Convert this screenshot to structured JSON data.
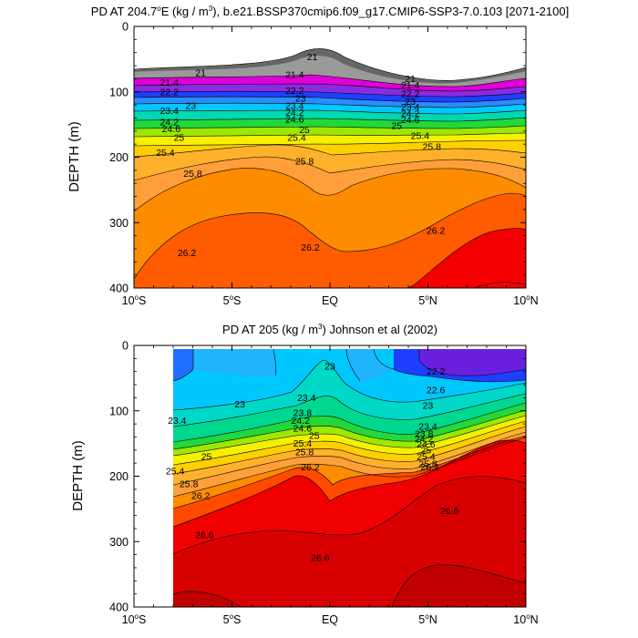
{
  "chart_data": [
    {
      "type": "contour",
      "panel": "top",
      "title": "PD AT 204.7°E (kg / m³), b.e21.BSSP370cmip6.f09_g17.CMIP6-SSP3-7.0.103 [2071-2100]",
      "title_parts": {
        "a": "PD AT 204.7",
        "deg": "o",
        "b": "E (kg / m",
        "sup": "3",
        "c": "), b.e21.BSSP370cmip6.f09_g17.CMIP6-SSP3-7.0.103 [2071-2100]"
      },
      "xlabel": "",
      "ylabel": "DEPTH (m)",
      "xlim": [
        -10,
        10
      ],
      "ylim": [
        400,
        0
      ],
      "x_ticks": [
        -10,
        -5,
        0,
        5,
        10
      ],
      "x_tick_labels": [
        {
          "deg": "10",
          "hem": "S"
        },
        {
          "deg": "5",
          "hem": "S"
        },
        {
          "deg": "EQ",
          "hem": ""
        },
        {
          "deg": "5",
          "hem": "N"
        },
        {
          "deg": "10",
          "hem": "N"
        }
      ],
      "y_ticks": [
        0,
        100,
        200,
        300,
        400
      ],
      "y_tick_labels": [
        "0",
        "100",
        "200",
        "300",
        "400"
      ],
      "contour_labels": [
        {
          "text": "21",
          "x": -6.6,
          "y": 71
        },
        {
          "text": "21",
          "x": -0.9,
          "y": 47
        },
        {
          "text": "21",
          "x": 4.1,
          "y": 80
        },
        {
          "text": "21.4",
          "x": -8.2,
          "y": 86
        },
        {
          "text": "21.4",
          "x": -1.8,
          "y": 74
        },
        {
          "text": "21.4",
          "x": 4.1,
          "y": 90
        },
        {
          "text": "22.2",
          "x": -8.2,
          "y": 100
        },
        {
          "text": "22.2",
          "x": -1.8,
          "y": 98
        },
        {
          "text": "22.2",
          "x": 4.1,
          "y": 103
        },
        {
          "text": "23",
          "x": -7.1,
          "y": 121
        },
        {
          "text": "23",
          "x": -1.5,
          "y": 110
        },
        {
          "text": "23",
          "x": 4.1,
          "y": 115
        },
        {
          "text": "23.4",
          "x": -8.2,
          "y": 129
        },
        {
          "text": "23.4",
          "x": -1.8,
          "y": 121
        },
        {
          "text": "23.4",
          "x": 4.1,
          "y": 123
        },
        {
          "text": "24.2",
          "x": -8.2,
          "y": 146
        },
        {
          "text": "24.2",
          "x": -1.8,
          "y": 132
        },
        {
          "text": "24.2",
          "x": 4.1,
          "y": 133
        },
        {
          "text": "24.6",
          "x": -8.1,
          "y": 157
        },
        {
          "text": "24.6",
          "x": -1.8,
          "y": 142
        },
        {
          "text": "24.6",
          "x": 4.1,
          "y": 143
        },
        {
          "text": "25",
          "x": -7.7,
          "y": 170
        },
        {
          "text": "25",
          "x": -1.3,
          "y": 158
        },
        {
          "text": "25",
          "x": 3.4,
          "y": 152
        },
        {
          "text": "25.4",
          "x": -8.4,
          "y": 193
        },
        {
          "text": "25.4",
          "x": -1.7,
          "y": 170
        },
        {
          "text": "25.4",
          "x": 4.6,
          "y": 167
        },
        {
          "text": "25.8",
          "x": -7.0,
          "y": 225
        },
        {
          "text": "25.8",
          "x": -1.3,
          "y": 206
        },
        {
          "text": "25.8",
          "x": 5.2,
          "y": 184
        },
        {
          "text": "26.2",
          "x": -7.3,
          "y": 346
        },
        {
          "text": "26.2",
          "x": -1.0,
          "y": 338
        },
        {
          "text": "26.2",
          "x": 5.4,
          "y": 312
        }
      ]
    },
    {
      "type": "contour",
      "panel": "bottom",
      "title": "PD AT 205 (kg / m³) Johnson et al (2002)",
      "title_parts": {
        "a": "PD AT 205 (kg / m",
        "sup": "3",
        "c": ") Johnson et al (2002)"
      },
      "xlabel": "",
      "ylabel": "DEPTH (m)",
      "xlim": [
        -10,
        10
      ],
      "ylim": [
        400,
        0
      ],
      "data_x_range": [
        -8,
        10
      ],
      "x_ticks": [
        -10,
        -5,
        0,
        5,
        10
      ],
      "x_tick_labels": [
        {
          "deg": "10",
          "hem": "S"
        },
        {
          "deg": "5",
          "hem": "S"
        },
        {
          "deg": "EQ",
          "hem": ""
        },
        {
          "deg": "5",
          "hem": "N"
        },
        {
          "deg": "10",
          "hem": "N"
        }
      ],
      "y_ticks": [
        0,
        100,
        200,
        300,
        400
      ],
      "y_tick_labels": [
        "0",
        "100",
        "200",
        "300",
        "400"
      ],
      "contour_labels": [
        {
          "text": "23",
          "x": 0.0,
          "y": 32
        },
        {
          "text": "22.2",
          "x": 5.4,
          "y": 40
        },
        {
          "text": "22.6",
          "x": 5.4,
          "y": 68
        },
        {
          "text": "23",
          "x": -4.6,
          "y": 90
        },
        {
          "text": "23",
          "x": 5.0,
          "y": 92
        },
        {
          "text": "23.4",
          "x": -7.8,
          "y": 115
        },
        {
          "text": "23.4",
          "x": -1.2,
          "y": 80
        },
        {
          "text": "23.4",
          "x": 5.0,
          "y": 124
        },
        {
          "text": "23.8",
          "x": -1.4,
          "y": 103
        },
        {
          "text": "23.8",
          "x": 4.8,
          "y": 135
        },
        {
          "text": "24.2",
          "x": -1.5,
          "y": 115
        },
        {
          "text": "24.2",
          "x": 4.8,
          "y": 143
        },
        {
          "text": "24.6",
          "x": -1.4,
          "y": 127
        },
        {
          "text": "24.6",
          "x": 4.9,
          "y": 151
        },
        {
          "text": "25",
          "x": -0.8,
          "y": 138
        },
        {
          "text": "25",
          "x": -6.3,
          "y": 170
        },
        {
          "text": "25",
          "x": 4.9,
          "y": 160
        },
        {
          "text": "25.4",
          "x": -1.4,
          "y": 150
        },
        {
          "text": "25.4",
          "x": -7.9,
          "y": 192
        },
        {
          "text": "25.4",
          "x": 4.9,
          "y": 170
        },
        {
          "text": "25.8",
          "x": -1.3,
          "y": 163
        },
        {
          "text": "25.8",
          "x": -7.2,
          "y": 212
        },
        {
          "text": "25.8",
          "x": 5.0,
          "y": 181
        },
        {
          "text": "26.2",
          "x": -1.0,
          "y": 186
        },
        {
          "text": "26.2",
          "x": -6.6,
          "y": 230
        },
        {
          "text": "26.2",
          "x": 5.1,
          "y": 186
        },
        {
          "text": "26.6",
          "x": -6.4,
          "y": 290
        },
        {
          "text": "26.6",
          "x": -0.5,
          "y": 325
        },
        {
          "text": "26.6",
          "x": 6.1,
          "y": 253
        }
      ]
    }
  ]
}
